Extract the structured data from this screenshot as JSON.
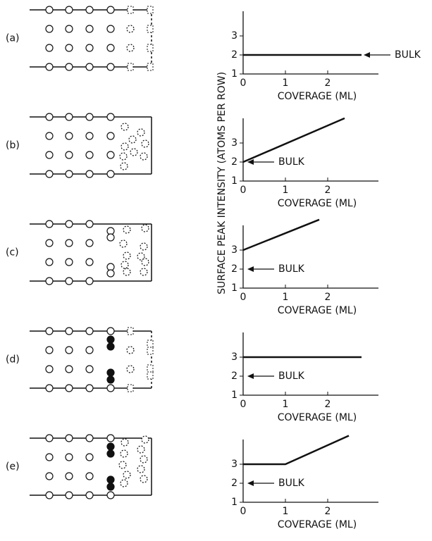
{
  "chart_data": [
    {
      "type": "line",
      "panel": "(a)",
      "xlabel": "COVERAGE (ML)",
      "xlim": [
        0,
        3.2
      ],
      "ylim": [
        1,
        4.3
      ],
      "xticks": [
        0,
        1,
        2
      ],
      "yticks": [
        1,
        2,
        3
      ],
      "series": [
        {
          "x": [
            0,
            2.8
          ],
          "values": [
            2,
            2
          ],
          "color": "#111111"
        }
      ],
      "annotations": [
        {
          "text": "BULK",
          "x": 2.85,
          "y": 2
        }
      ]
    },
    {
      "type": "line",
      "panel": "(b)",
      "xlabel": "COVERAGE (ML)",
      "xlim": [
        0,
        3.2
      ],
      "ylim": [
        1,
        4.3
      ],
      "xticks": [
        0,
        1,
        2
      ],
      "yticks": [
        1,
        2,
        3
      ],
      "series": [
        {
          "x": [
            0,
            2.4
          ],
          "values": [
            2,
            4.3
          ],
          "color": "#111111"
        }
      ],
      "annotations": [
        {
          "text": "BULK",
          "x": 0.1,
          "y": 2
        }
      ]
    },
    {
      "type": "line",
      "panel": "(c)",
      "xlabel": "COVERAGE (ML)",
      "xlim": [
        0,
        3.2
      ],
      "ylim": [
        1,
        4.3
      ],
      "xticks": [
        0,
        1,
        2
      ],
      "yticks": [
        1,
        2,
        3
      ],
      "ylabel": "SURFACE PEAK INTENSITY (ATOMS PER ROW)",
      "series": [
        {
          "x": [
            0,
            1.8
          ],
          "values": [
            3,
            4.6
          ],
          "color": "#111111"
        }
      ],
      "annotations": [
        {
          "text": "BULK",
          "x": 0.1,
          "y": 2
        }
      ]
    },
    {
      "type": "line",
      "panel": "(d)",
      "xlabel": "COVERAGE (ML)",
      "xlim": [
        0,
        3.2
      ],
      "ylim": [
        1,
        4.3
      ],
      "xticks": [
        0,
        1,
        2
      ],
      "yticks": [
        1,
        2,
        3
      ],
      "series": [
        {
          "x": [
            0,
            2.8
          ],
          "values": [
            3,
            3
          ],
          "color": "#111111"
        }
      ],
      "annotations": [
        {
          "text": "BULK",
          "x": 0.1,
          "y": 2
        }
      ]
    },
    {
      "type": "line",
      "panel": "(e)",
      "xlabel": "COVERAGE (ML)",
      "xlim": [
        0,
        3.2
      ],
      "ylim": [
        1,
        4.3
      ],
      "xticks": [
        0,
        1,
        2
      ],
      "yticks": [
        1,
        2,
        3
      ],
      "series": [
        {
          "x": [
            0,
            1,
            2.5
          ],
          "values": [
            3,
            3,
            4.5
          ],
          "color": "#111111"
        }
      ],
      "annotations": [
        {
          "text": "BULK",
          "x": 0.1,
          "y": 2
        }
      ]
    }
  ]
}
